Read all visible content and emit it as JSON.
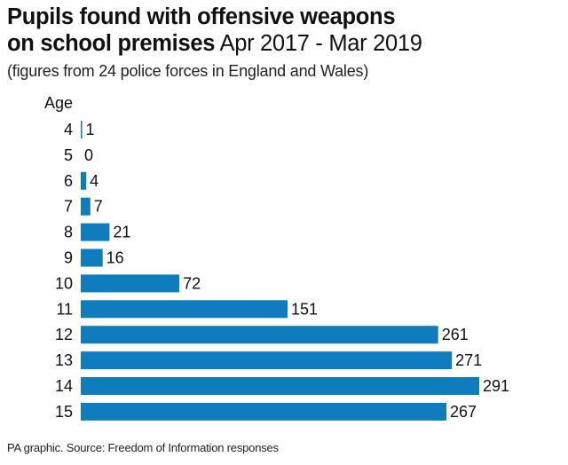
{
  "header": {
    "title_bold_line1": "Pupils found with offensive weapons",
    "title_bold_line2": "on school premises",
    "title_light": "Apr 2017 - Mar 2019",
    "subtitle": "(figures from 24 police forces in England and Wales)"
  },
  "footer": {
    "source": "PA graphic. Source: Freedom of Information responses"
  },
  "colors": {
    "bar": "#0f7dbd",
    "text": "#111111"
  },
  "chart_data": {
    "type": "bar",
    "orientation": "horizontal",
    "title": "Pupils found with offensive weapons on school premises Apr 2017 - Mar 2019",
    "subtitle": "(figures from 24 police forces in England and Wales)",
    "ylabel": "Age",
    "categories": [
      "4",
      "5",
      "6",
      "7",
      "8",
      "9",
      "10",
      "11",
      "12",
      "13",
      "14",
      "15"
    ],
    "values": [
      1,
      0,
      4,
      7,
      21,
      16,
      72,
      151,
      261,
      271,
      291,
      267
    ],
    "xlim": [
      0,
      291
    ],
    "grid": false,
    "legend": "none"
  }
}
